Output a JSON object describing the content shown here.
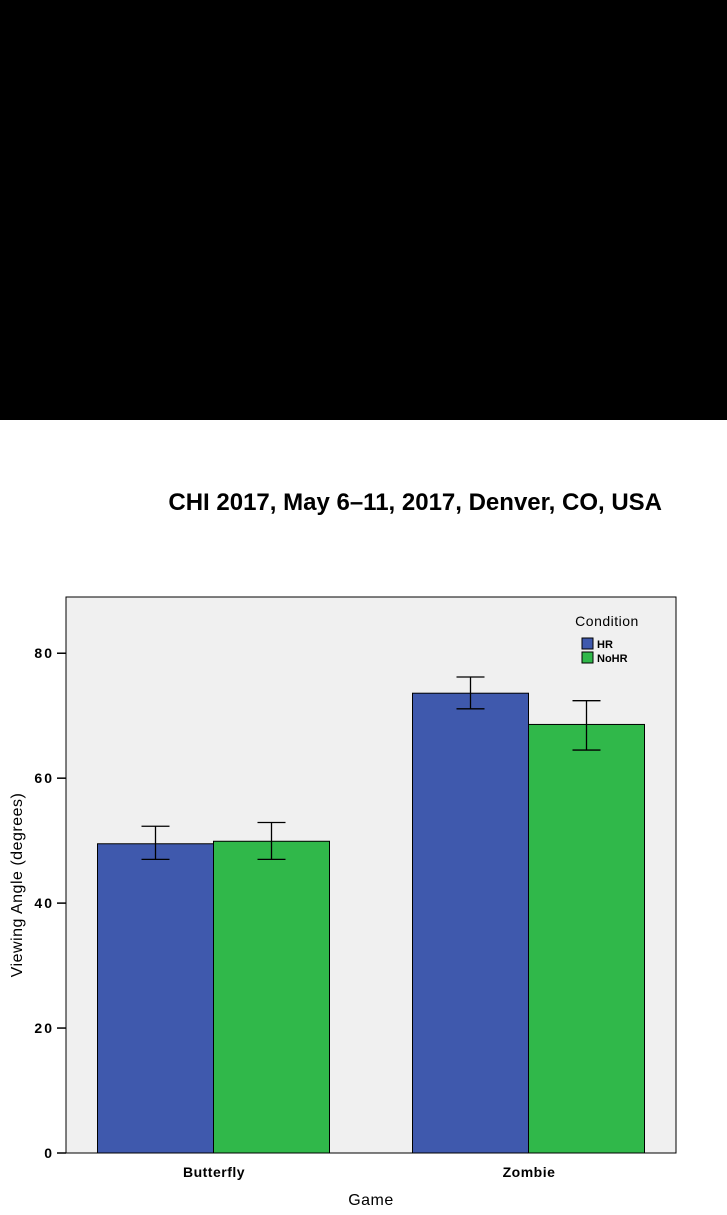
{
  "header": {
    "running_head": "CHI 2017, May 6–11, 2017, Denver, CO, USA"
  },
  "colors": {
    "top_band": "#000000",
    "plot_background": "#f0f0f0",
    "HR": "#3f59ad",
    "NoHR": "#30b84a"
  },
  "chart_data": {
    "type": "bar",
    "xlabel": "Game",
    "ylabel": "Viewing Angle (degrees)",
    "categories": [
      "Butterfly",
      "Zombie"
    ],
    "ylim": [
      0,
      89
    ],
    "yticks": [
      0,
      20,
      40,
      60,
      80
    ],
    "grid": false,
    "legend": {
      "title": "Condition",
      "position": "top-right"
    },
    "series": [
      {
        "name": "HR",
        "values": [
          49.5,
          73.6
        ],
        "err_low": [
          47.0,
          71.1
        ],
        "err_high": [
          52.3,
          76.2
        ]
      },
      {
        "name": "NoHR",
        "values": [
          49.9,
          68.6
        ],
        "err_low": [
          47.0,
          64.5
        ],
        "err_high": [
          52.9,
          72.4
        ]
      }
    ]
  }
}
